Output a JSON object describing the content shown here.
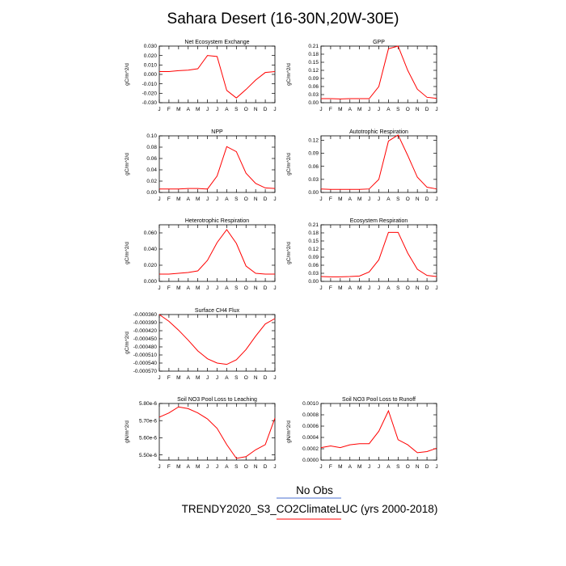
{
  "figure": {
    "title": "Sahara Desert (16-30N,20W-30E)",
    "month_labels": [
      "J",
      "F",
      "M",
      "A",
      "M",
      "J",
      "J",
      "A",
      "S",
      "O",
      "N",
      "D",
      "J"
    ],
    "colors": {
      "model_line": "#ff0000",
      "obs_line": "#4a6fd0",
      "axes": "#000000"
    }
  },
  "legend": {
    "obs_label": "No Obs",
    "model_label": "TRENDY2020_S3_CO2ClimateLUC (yrs 2000-2018)"
  },
  "chart_data": [
    {
      "type": "line",
      "title": "Net Ecosystem Exchange",
      "ylabel": "gC/m^2/d",
      "ylim": [
        -0.03,
        0.03
      ],
      "yticks": [
        "0.030",
        "0.020",
        "0.010",
        "0.000",
        "-0.010",
        "-0.020",
        "-0.030"
      ],
      "ytick_values": [
        0.03,
        0.02,
        0.01,
        0.0,
        -0.01,
        -0.02,
        -0.03
      ],
      "x": [
        "J",
        "F",
        "M",
        "A",
        "M",
        "J",
        "J",
        "A",
        "S",
        "O",
        "N",
        "D",
        "J"
      ],
      "series": [
        {
          "values": [
            0.003,
            0.003,
            0.004,
            0.0045,
            0.006,
            0.02,
            0.019,
            -0.017,
            -0.025,
            -0.016,
            -0.006,
            0.002,
            0.003
          ]
        }
      ]
    },
    {
      "type": "line",
      "title": "GPP",
      "ylabel": "gC/m^2/d",
      "ylim": [
        0.0,
        0.21
      ],
      "yticks": [
        "0.21",
        "0.18",
        "0.15",
        "0.12",
        "0.09",
        "0.06",
        "0.03",
        "0.00"
      ],
      "ytick_values": [
        0.21,
        0.18,
        0.15,
        0.12,
        0.09,
        0.06,
        0.03,
        0.0
      ],
      "x": [
        "J",
        "F",
        "M",
        "A",
        "M",
        "J",
        "J",
        "A",
        "S",
        "O",
        "N",
        "D",
        "J"
      ],
      "series": [
        {
          "values": [
            0.015,
            0.015,
            0.014,
            0.015,
            0.015,
            0.015,
            0.06,
            0.2,
            0.21,
            0.12,
            0.05,
            0.02,
            0.016
          ]
        }
      ]
    },
    {
      "type": "line",
      "title": "NPP",
      "ylabel": "gC/m^2/d",
      "ylim": [
        0.0,
        0.1
      ],
      "yticks": [
        "0.10",
        "0.08",
        "0.06",
        "0.04",
        "0.02",
        "0.00"
      ],
      "ytick_values": [
        0.1,
        0.08,
        0.06,
        0.04,
        0.02,
        0.0
      ],
      "x": [
        "J",
        "F",
        "M",
        "A",
        "M",
        "J",
        "J",
        "A",
        "S",
        "O",
        "N",
        "D",
        "J"
      ],
      "series": [
        {
          "values": [
            0.006,
            0.006,
            0.006,
            0.007,
            0.007,
            0.006,
            0.029,
            0.081,
            0.072,
            0.034,
            0.016,
            0.008,
            0.007
          ]
        }
      ]
    },
    {
      "type": "line",
      "title": "Autotrophic Respiration",
      "ylabel": "gC/m^2/d",
      "ylim": [
        0.0,
        0.13
      ],
      "yticks": [
        "0.12",
        "0.09",
        "0.06",
        "0.03",
        "0.00"
      ],
      "ytick_values": [
        0.12,
        0.09,
        0.06,
        0.03,
        0.0
      ],
      "x": [
        "J",
        "F",
        "M",
        "A",
        "M",
        "J",
        "J",
        "A",
        "S",
        "O",
        "N",
        "D",
        "J"
      ],
      "series": [
        {
          "values": [
            0.008,
            0.007,
            0.007,
            0.007,
            0.007,
            0.008,
            0.03,
            0.118,
            0.132,
            0.085,
            0.035,
            0.012,
            0.008
          ]
        }
      ]
    },
    {
      "type": "line",
      "title": "Heterotrophic Respiration",
      "ylabel": "gC/m^2/d",
      "ylim": [
        0.0,
        0.07
      ],
      "yticks": [
        "0.060",
        "0.040",
        "0.020",
        "0.000"
      ],
      "ytick_values": [
        0.06,
        0.04,
        0.02,
        0.0
      ],
      "x": [
        "J",
        "F",
        "M",
        "A",
        "M",
        "J",
        "J",
        "A",
        "S",
        "O",
        "N",
        "D",
        "J"
      ],
      "series": [
        {
          "values": [
            0.009,
            0.009,
            0.01,
            0.011,
            0.013,
            0.026,
            0.048,
            0.064,
            0.047,
            0.019,
            0.01,
            0.009,
            0.009
          ]
        }
      ]
    },
    {
      "type": "line",
      "title": "Ecosystem Respiration",
      "ylabel": "gC/m^2/d",
      "ylim": [
        0.0,
        0.21
      ],
      "yticks": [
        "0.21",
        "0.18",
        "0.15",
        "0.12",
        "0.09",
        "0.06",
        "0.03",
        "0.00"
      ],
      "ytick_values": [
        0.21,
        0.18,
        0.15,
        0.12,
        0.09,
        0.06,
        0.03,
        0.0
      ],
      "x": [
        "J",
        "F",
        "M",
        "A",
        "M",
        "J",
        "J",
        "A",
        "S",
        "O",
        "N",
        "D",
        "J"
      ],
      "series": [
        {
          "values": [
            0.018,
            0.017,
            0.017,
            0.018,
            0.02,
            0.035,
            0.08,
            0.182,
            0.182,
            0.105,
            0.045,
            0.022,
            0.018
          ]
        }
      ]
    },
    {
      "type": "line",
      "title": "Surface CH4 Flux",
      "ylabel": "gC/m^2/d",
      "ylim": [
        -0.00057,
        -0.00036
      ],
      "yticks": [
        "-0.000360",
        "-0.000390",
        "-0.000420",
        "-0.000450",
        "-0.000480",
        "-0.000510",
        "-0.000540",
        "-0.000570"
      ],
      "ytick_values": [
        -0.00036,
        -0.00039,
        -0.00042,
        -0.00045,
        -0.00048,
        -0.00051,
        -0.00054,
        -0.00057
      ],
      "x": [
        "J",
        "F",
        "M",
        "A",
        "M",
        "J",
        "J",
        "A",
        "S",
        "O",
        "N",
        "D",
        "J"
      ],
      "series": [
        {
          "values": [
            -0.00036,
            -0.000385,
            -0.000418,
            -0.000455,
            -0.000495,
            -0.000524,
            -0.00054,
            -0.000545,
            -0.000528,
            -0.00049,
            -0.00044,
            -0.000395,
            -0.000375
          ]
        }
      ]
    },
    {
      "type": "line",
      "title": "Soil NO3 Pool Loss to Leaching",
      "ylabel": "gN/m^2/d",
      "ylim": [
        5.47e-06,
        5.8e-06
      ],
      "yticks": [
        "5.80e-6",
        "5.70e-6",
        "5.60e-6",
        "5.50e-6"
      ],
      "ytick_values": [
        5.8e-06,
        5.7e-06,
        5.6e-06,
        5.5e-06
      ],
      "x": [
        "J",
        "F",
        "M",
        "A",
        "M",
        "J",
        "J",
        "A",
        "S",
        "O",
        "N",
        "D",
        "J"
      ],
      "series": [
        {
          "values": [
            5.72e-06,
            5.745e-06,
            5.78e-06,
            5.77e-06,
            5.745e-06,
            5.71e-06,
            5.655e-06,
            5.56e-06,
            5.48e-06,
            5.49e-06,
            5.53e-06,
            5.56e-06,
            5.715e-06
          ]
        }
      ]
    },
    {
      "type": "line",
      "title": "Soil NO3 Pool Loss to Runoff",
      "ylabel": "gN/m^2/d",
      "ylim": [
        0.0,
        0.001
      ],
      "yticks": [
        "0.0010",
        "0.0008",
        "0.0006",
        "0.0004",
        "0.0002",
        "0.0000"
      ],
      "ytick_values": [
        0.001,
        0.0008,
        0.0006,
        0.0004,
        0.0002,
        0.0
      ],
      "x": [
        "J",
        "F",
        "M",
        "A",
        "M",
        "J",
        "J",
        "A",
        "S",
        "O",
        "N",
        "D",
        "J"
      ],
      "series": [
        {
          "values": [
            0.00022,
            0.00025,
            0.00022,
            0.00027,
            0.00029,
            0.00029,
            0.00051,
            0.00087,
            0.00036,
            0.00027,
            0.00013,
            0.00015,
            0.00021
          ]
        }
      ]
    }
  ]
}
